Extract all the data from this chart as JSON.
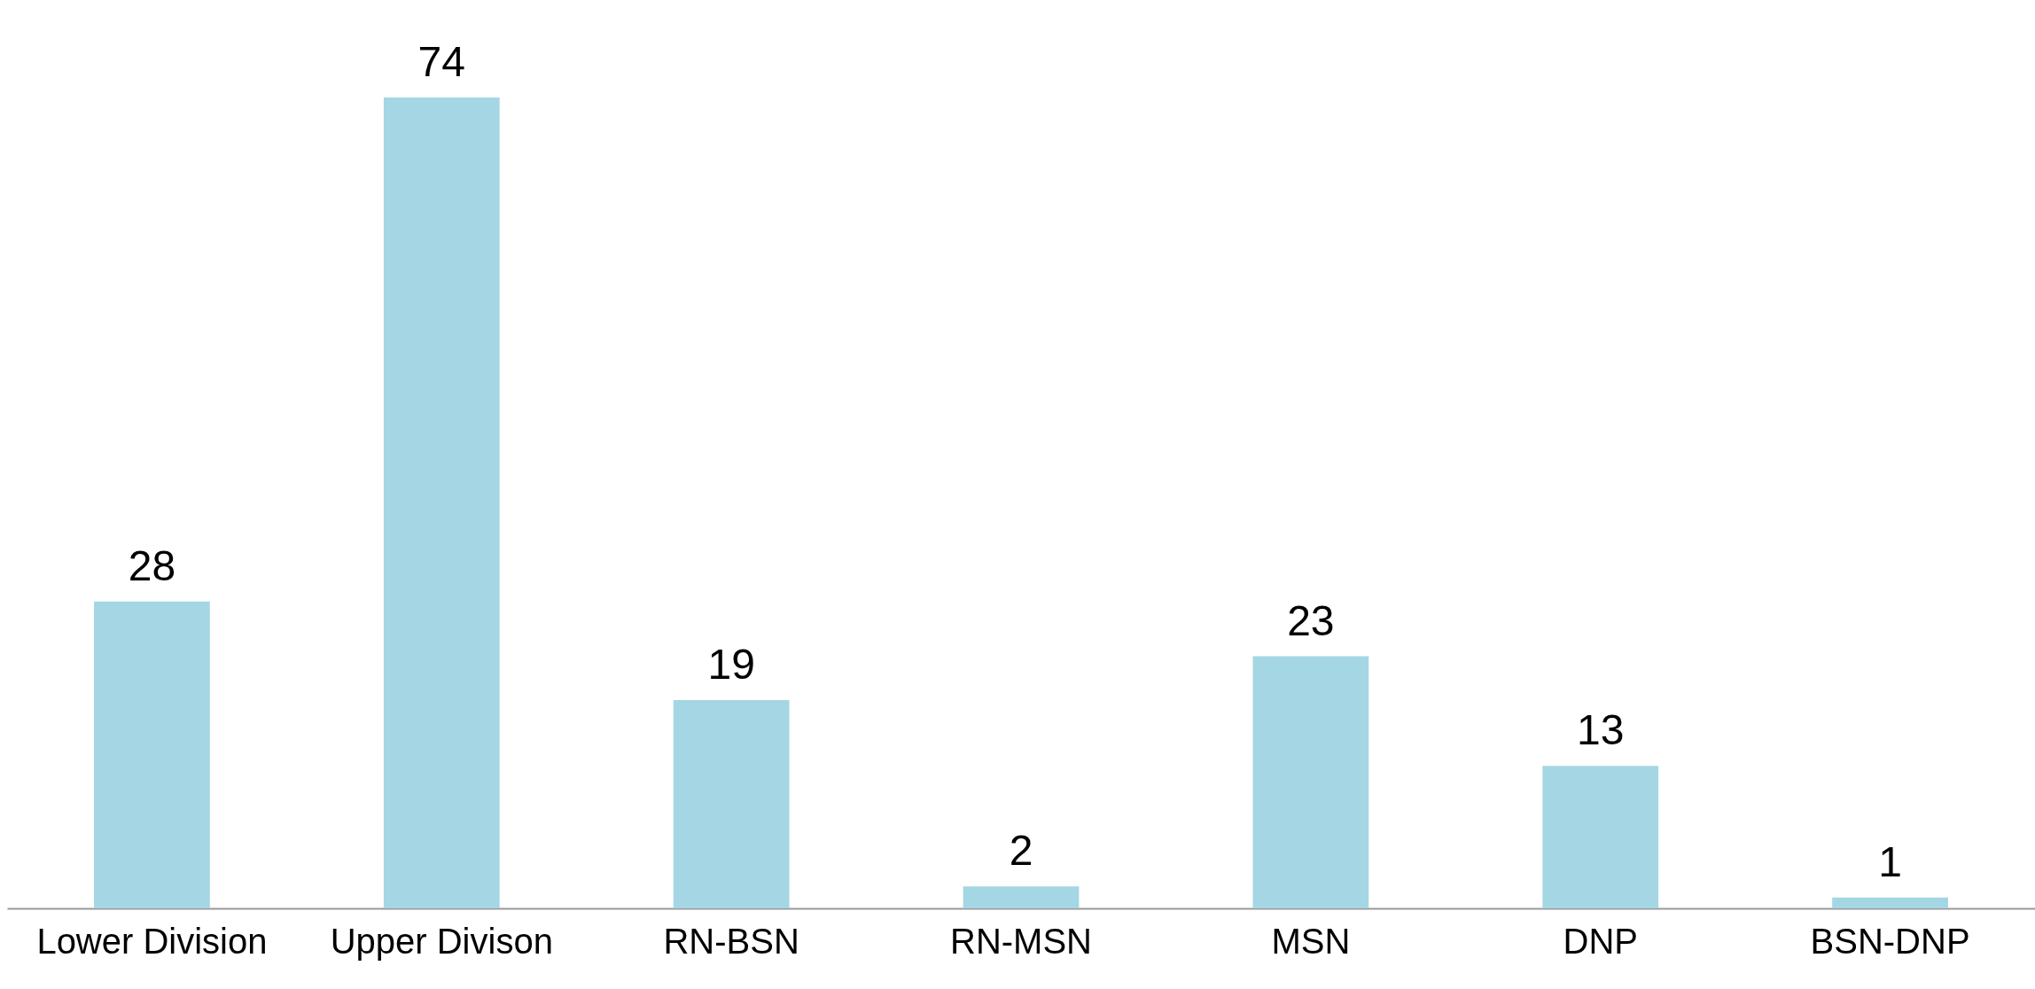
{
  "chart_data": {
    "type": "bar",
    "categories": [
      "Lower Division",
      "Upper Divison",
      "RN-BSN",
      "RN-MSN",
      "MSN",
      "DNP",
      "BSN-DNP"
    ],
    "values": [
      28,
      74,
      19,
      2,
      23,
      13,
      1
    ],
    "color": "#a4d6e3",
    "data_labels": true,
    "tick_labels": "x"
  }
}
